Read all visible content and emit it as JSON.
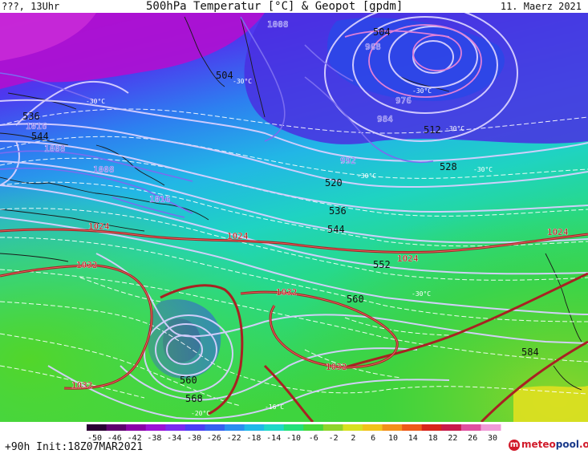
{
  "header": {
    "location": "???, 13Uhr",
    "title": "500hPa Temperatur [°C] & Geopot [gpdm]",
    "date": "11. Maerz 2021"
  },
  "footer": {
    "run": "+90h Init:18Z07MAR2021",
    "logo_part1": "meteo",
    "logo_part2": "pool",
    "logo_part3": ".org"
  },
  "colorbar": {
    "ticks": [
      "-50",
      "-46",
      "-42",
      "-38",
      "-34",
      "-30",
      "-26",
      "-22",
      "-18",
      "-14",
      "-10",
      "-6",
      "-2",
      "2",
      "6",
      "10",
      "14",
      "18",
      "22",
      "26",
      "30"
    ],
    "colors": [
      "#2a0033",
      "#5e006e",
      "#8a00a8",
      "#9b11d6",
      "#7a2af0",
      "#4b3ef5",
      "#3561f0",
      "#2a8ef0",
      "#20b8e8",
      "#1fd8c8",
      "#22e07a",
      "#45d83a",
      "#8fd42a",
      "#d8e020",
      "#f2c21a",
      "#f3901a",
      "#ee5a18",
      "#d8241a",
      "#c81a4a",
      "#e04fa0",
      "#f09ad8"
    ]
  },
  "geopotential_labels": [
    {
      "text": "504",
      "t": 2
    },
    {
      "text": "504",
      "t": 2
    },
    {
      "text": "536",
      "t": 2
    },
    {
      "text": "544",
      "t": 2
    },
    {
      "text": "512",
      "t": 2
    },
    {
      "text": "520",
      "t": 2
    },
    {
      "text": "528",
      "t": 2
    },
    {
      "text": "536",
      "t": 2
    },
    {
      "text": "544",
      "t": 2
    },
    {
      "text": "552",
      "t": 2
    },
    {
      "text": "560",
      "t": 2
    },
    {
      "text": "584",
      "t": 2
    },
    {
      "text": "560",
      "t": 2
    },
    {
      "text": "568",
      "t": 2
    }
  ],
  "pressure_labels": [
    {
      "text": "1008",
      "t": 1
    },
    {
      "text": "968",
      "t": 1
    },
    {
      "text": "976",
      "t": 1
    },
    {
      "text": "984",
      "t": 1
    },
    {
      "text": "992",
      "t": 1
    },
    {
      "text": "1016",
      "t": 1
    },
    {
      "text": "1008",
      "t": 1
    },
    {
      "text": "1008",
      "t": 1
    },
    {
      "text": "1016",
      "t": 1
    },
    {
      "text": "1024",
      "t": 0
    },
    {
      "text": "1024",
      "t": 0
    },
    {
      "text": "1024",
      "t": 0
    },
    {
      "text": "1024",
      "t": 0
    },
    {
      "text": "1032",
      "t": 0
    },
    {
      "text": "1032",
      "t": 0
    },
    {
      "text": "1032",
      "t": 0
    },
    {
      "text": "1032",
      "t": 0
    }
  ],
  "temperature_labels": [
    {
      "text": "-30°C"
    },
    {
      "text": "-30°C"
    },
    {
      "text": "-30°C"
    },
    {
      "text": "-30°C"
    },
    {
      "text": "-30°C"
    },
    {
      "text": "-30°C"
    },
    {
      "text": "-30°C"
    },
    {
      "text": "-16°C"
    },
    {
      "text": "-20°C"
    }
  ],
  "style": {
    "pressure_colors": [
      "#b82020",
      "#7a6cf0",
      "#e080d8"
    ]
  }
}
